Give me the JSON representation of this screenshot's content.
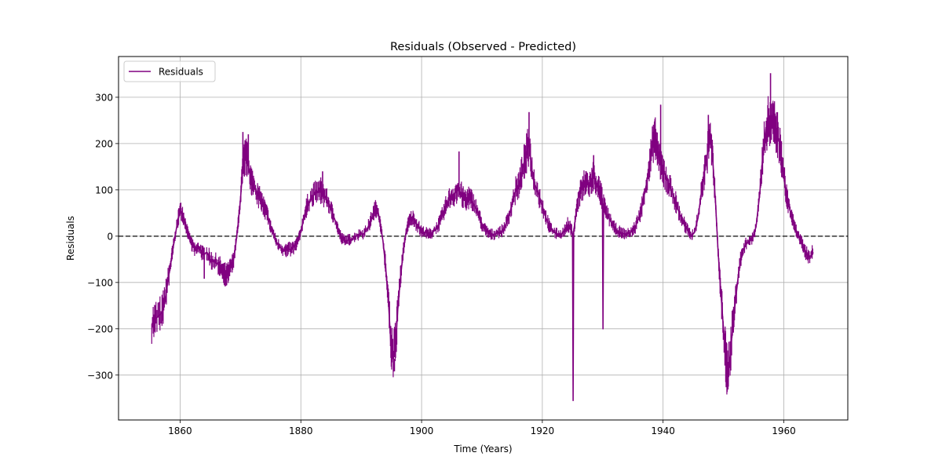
{
  "chart_data": {
    "type": "line",
    "title": "Residuals (Observed - Predicted)",
    "xlabel": "Time (Years)",
    "ylabel": "Residuals",
    "xlim": [
      1849.8,
      1970.6
    ],
    "ylim": [
      -397,
      388
    ],
    "xticks": [
      1860,
      1880,
      1900,
      1920,
      1940,
      1960
    ],
    "yticks": [
      -300,
      -200,
      -100,
      0,
      100,
      200,
      300
    ],
    "grid": true,
    "legend": {
      "position": "top-left"
    },
    "reference_line": {
      "y": 0,
      "style": "dashed",
      "color": "#333333"
    },
    "colors": {
      "series": "#800080"
    },
    "series": [
      {
        "name": "Residuals",
        "points": [
          [
            1855.3,
            -190
          ],
          [
            1856.0,
            -178
          ],
          [
            1857.0,
            -165
          ],
          [
            1857.6,
            -130
          ],
          [
            1858.0,
            -95
          ],
          [
            1858.5,
            -55
          ],
          [
            1858.9,
            -20
          ],
          [
            1859.3,
            10
          ],
          [
            1859.7,
            40
          ],
          [
            1860.0,
            55
          ],
          [
            1860.4,
            50
          ],
          [
            1860.8,
            30
          ],
          [
            1861.2,
            10
          ],
          [
            1861.6,
            -5
          ],
          [
            1862.0,
            -20
          ],
          [
            1862.6,
            -30
          ],
          [
            1863.2,
            -25
          ],
          [
            1863.8,
            -40
          ],
          [
            1864.4,
            -35
          ],
          [
            1865.0,
            -50
          ],
          [
            1865.6,
            -55
          ],
          [
            1866.2,
            -60
          ],
          [
            1866.8,
            -70
          ],
          [
            1867.4,
            -82
          ],
          [
            1867.8,
            -85
          ],
          [
            1868.3,
            -70
          ],
          [
            1868.8,
            -55
          ],
          [
            1869.2,
            -20
          ],
          [
            1869.6,
            25
          ],
          [
            1870.0,
            80
          ],
          [
            1870.4,
            150
          ],
          [
            1870.8,
            175
          ],
          [
            1871.2,
            160
          ],
          [
            1871.6,
            130
          ],
          [
            1872.0,
            115
          ],
          [
            1872.5,
            100
          ],
          [
            1873.0,
            85
          ],
          [
            1873.5,
            75
          ],
          [
            1874.0,
            60
          ],
          [
            1874.5,
            45
          ],
          [
            1875.0,
            20
          ],
          [
            1875.5,
            5
          ],
          [
            1876.0,
            -15
          ],
          [
            1876.6,
            -25
          ],
          [
            1877.2,
            -30
          ],
          [
            1877.8,
            -30
          ],
          [
            1878.4,
            -28
          ],
          [
            1879.0,
            -22
          ],
          [
            1879.5,
            -10
          ],
          [
            1880.0,
            10
          ],
          [
            1880.5,
            40
          ],
          [
            1881.0,
            65
          ],
          [
            1881.6,
            80
          ],
          [
            1882.2,
            90
          ],
          [
            1882.8,
            95
          ],
          [
            1883.4,
            100
          ],
          [
            1884.0,
            85
          ],
          [
            1884.6,
            70
          ],
          [
            1885.2,
            50
          ],
          [
            1885.8,
            30
          ],
          [
            1886.3,
            10
          ],
          [
            1886.8,
            -5
          ],
          [
            1887.4,
            -10
          ],
          [
            1888.0,
            -8
          ],
          [
            1888.6,
            -5
          ],
          [
            1889.2,
            0
          ],
          [
            1889.8,
            5
          ],
          [
            1890.4,
            5
          ],
          [
            1891.0,
            15
          ],
          [
            1891.6,
            35
          ],
          [
            1892.2,
            55
          ],
          [
            1892.7,
            60
          ],
          [
            1893.1,
            30
          ],
          [
            1893.6,
            -10
          ],
          [
            1894.0,
            -60
          ],
          [
            1894.5,
            -140
          ],
          [
            1894.9,
            -230
          ],
          [
            1895.3,
            -265
          ],
          [
            1895.7,
            -230
          ],
          [
            1896.1,
            -150
          ],
          [
            1896.5,
            -90
          ],
          [
            1897.0,
            -30
          ],
          [
            1897.5,
            15
          ],
          [
            1898.0,
            35
          ],
          [
            1898.5,
            40
          ],
          [
            1899.0,
            30
          ],
          [
            1899.5,
            20
          ],
          [
            1900.0,
            10
          ],
          [
            1900.6,
            8
          ],
          [
            1901.2,
            5
          ],
          [
            1901.8,
            8
          ],
          [
            1902.4,
            15
          ],
          [
            1903.0,
            30
          ],
          [
            1903.6,
            50
          ],
          [
            1904.2,
            70
          ],
          [
            1904.8,
            85
          ],
          [
            1905.4,
            90
          ],
          [
            1906.0,
            100
          ],
          [
            1906.6,
            90
          ],
          [
            1907.2,
            80
          ],
          [
            1907.8,
            85
          ],
          [
            1908.4,
            75
          ],
          [
            1909.0,
            60
          ],
          [
            1909.6,
            40
          ],
          [
            1910.2,
            20
          ],
          [
            1910.8,
            10
          ],
          [
            1911.4,
            5
          ],
          [
            1912.0,
            3
          ],
          [
            1912.6,
            8
          ],
          [
            1913.2,
            10
          ],
          [
            1913.8,
            20
          ],
          [
            1914.4,
            40
          ],
          [
            1915.0,
            70
          ],
          [
            1915.6,
            100
          ],
          [
            1916.2,
            115
          ],
          [
            1916.8,
            150
          ],
          [
            1917.3,
            175
          ],
          [
            1917.8,
            200
          ],
          [
            1918.3,
            140
          ],
          [
            1918.8,
            110
          ],
          [
            1919.4,
            90
          ],
          [
            1920.0,
            65
          ],
          [
            1920.6,
            40
          ],
          [
            1921.2,
            20
          ],
          [
            1921.8,
            10
          ],
          [
            1922.4,
            5
          ],
          [
            1923.0,
            3
          ],
          [
            1923.6,
            10
          ],
          [
            1924.2,
            25
          ],
          [
            1924.8,
            15
          ],
          [
            1925.0,
            5
          ],
          [
            1925.1,
            -355
          ],
          [
            1925.2,
            10
          ],
          [
            1925.6,
            50
          ],
          [
            1926.0,
            85
          ],
          [
            1926.6,
            105
          ],
          [
            1927.2,
            120
          ],
          [
            1927.8,
            110
          ],
          [
            1928.4,
            130
          ],
          [
            1929.0,
            115
          ],
          [
            1929.6,
            95
          ],
          [
            1929.95,
            80
          ],
          [
            1930.05,
            -200
          ],
          [
            1930.15,
            70
          ],
          [
            1930.6,
            50
          ],
          [
            1931.2,
            35
          ],
          [
            1931.8,
            20
          ],
          [
            1932.4,
            12
          ],
          [
            1933.0,
            8
          ],
          [
            1933.6,
            5
          ],
          [
            1934.2,
            5
          ],
          [
            1934.8,
            10
          ],
          [
            1935.4,
            20
          ],
          [
            1936.0,
            40
          ],
          [
            1936.6,
            70
          ],
          [
            1937.2,
            110
          ],
          [
            1937.8,
            160
          ],
          [
            1938.3,
            200
          ],
          [
            1938.8,
            210
          ],
          [
            1939.3,
            170
          ],
          [
            1939.8,
            150
          ],
          [
            1940.4,
            130
          ],
          [
            1941.0,
            110
          ],
          [
            1941.6,
            90
          ],
          [
            1942.2,
            70
          ],
          [
            1942.8,
            45
          ],
          [
            1943.4,
            30
          ],
          [
            1944.0,
            15
          ],
          [
            1944.6,
            0
          ],
          [
            1945.2,
            8
          ],
          [
            1945.8,
            40
          ],
          [
            1946.4,
            100
          ],
          [
            1947.0,
            150
          ],
          [
            1947.5,
            190
          ],
          [
            1947.9,
            215
          ],
          [
            1948.3,
            150
          ],
          [
            1948.7,
            70
          ],
          [
            1949.1,
            -30
          ],
          [
            1949.5,
            -110
          ],
          [
            1949.9,
            -180
          ],
          [
            1950.3,
            -250
          ],
          [
            1950.7,
            -300
          ],
          [
            1951.1,
            -260
          ],
          [
            1951.5,
            -200
          ],
          [
            1952.0,
            -140
          ],
          [
            1952.5,
            -80
          ],
          [
            1953.0,
            -40
          ],
          [
            1953.6,
            -20
          ],
          [
            1954.2,
            -10
          ],
          [
            1954.8,
            -5
          ],
          [
            1955.4,
            20
          ],
          [
            1956.0,
            90
          ],
          [
            1956.5,
            170
          ],
          [
            1957.0,
            230
          ],
          [
            1957.4,
            250
          ],
          [
            1957.8,
            240
          ],
          [
            1958.3,
            245
          ],
          [
            1958.8,
            230
          ],
          [
            1959.3,
            200
          ],
          [
            1959.8,
            150
          ],
          [
            1960.3,
            100
          ],
          [
            1960.8,
            70
          ],
          [
            1961.3,
            40
          ],
          [
            1961.8,
            20
          ],
          [
            1962.3,
            5
          ],
          [
            1962.8,
            -10
          ],
          [
            1963.3,
            -25
          ],
          [
            1963.8,
            -40
          ],
          [
            1964.3,
            -45
          ],
          [
            1964.9,
            -35
          ]
        ],
        "spikes": [
          [
            1870.4,
            225
          ],
          [
            1871.3,
            220
          ],
          [
            1917.8,
            268
          ],
          [
            1938.6,
            248
          ],
          [
            1939.6,
            284
          ],
          [
            1947.5,
            262
          ],
          [
            1957.8,
            352
          ],
          [
            1895.5,
            -292
          ],
          [
            1950.8,
            -325
          ],
          [
            1887.5,
            -15
          ],
          [
            1944.8,
            -8
          ],
          [
            1864.0,
            -92
          ],
          [
            1883.6,
            140
          ],
          [
            1906.2,
            183
          ],
          [
            1928.5,
            175
          ]
        ]
      }
    ]
  }
}
